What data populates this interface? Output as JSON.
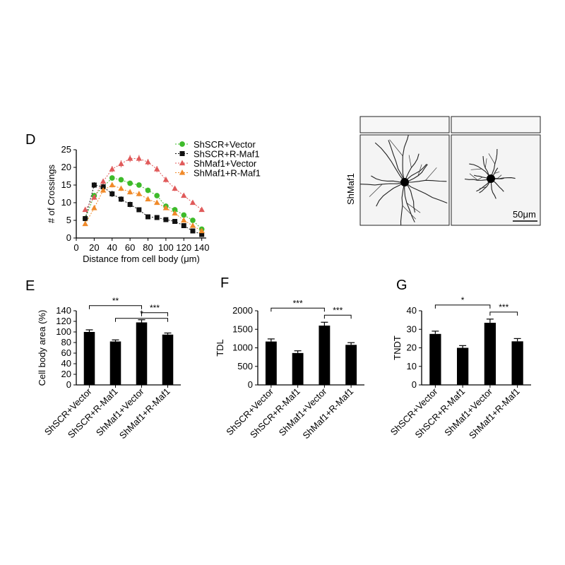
{
  "panels": {
    "D": "D",
    "E": "E",
    "F": "F",
    "G": "G"
  },
  "micrograph": {
    "row_label": "ShMaf1",
    "scale_bar": "50μm"
  },
  "chart_data": [
    {
      "id": "D",
      "type": "line",
      "title": "",
      "xlabel": "Distance from cell body (μm)",
      "ylabel": "# of Crossings",
      "xlim": [
        0,
        145
      ],
      "ylim": [
        0,
        25
      ],
      "xticks": [
        0,
        20,
        40,
        60,
        80,
        100,
        120,
        140
      ],
      "yticks": [
        0,
        5,
        10,
        15,
        20,
        25
      ],
      "legend_position": "top-right",
      "x": [
        10,
        20,
        30,
        40,
        50,
        60,
        70,
        80,
        90,
        100,
        110,
        120,
        130,
        140
      ],
      "series": [
        {
          "name": "ShSCR+Vector",
          "color": "#3dbb2a",
          "marker": "circle",
          "values": [
            5.5,
            12.0,
            14.5,
            17.0,
            16.5,
            15.5,
            15.0,
            13.5,
            12.0,
            9.0,
            8.0,
            6.5,
            5.0,
            2.5
          ],
          "errors": [
            0.5,
            0.6,
            0.6,
            0.7,
            0.7,
            0.7,
            0.7,
            0.6,
            0.6,
            0.6,
            0.5,
            0.5,
            0.5,
            0.4
          ]
        },
        {
          "name": "ShSCR+R-Maf1",
          "color": "#111111",
          "marker": "square",
          "values": [
            5.5,
            15.0,
            14.5,
            12.5,
            11.0,
            9.5,
            8.0,
            6.0,
            5.8,
            5.2,
            4.7,
            3.5,
            2.0,
            1.0
          ],
          "errors": [
            0.6,
            0.8,
            0.9,
            0.9,
            0.8,
            0.8,
            0.7,
            0.7,
            0.6,
            0.6,
            0.6,
            0.5,
            0.4,
            0.3
          ]
        },
        {
          "name": "ShMaf1+Vector",
          "color": "#e05a5a",
          "marker": "triangle",
          "values": [
            8.0,
            11.5,
            16.0,
            19.5,
            21.0,
            22.5,
            22.5,
            21.5,
            19.5,
            16.5,
            14.0,
            12.0,
            10.0,
            8.0
          ],
          "errors": [
            0.6,
            0.7,
            0.8,
            0.9,
            1.0,
            1.0,
            1.0,
            0.9,
            0.9,
            0.8,
            0.7,
            0.6,
            0.6,
            0.5
          ]
        },
        {
          "name": "ShMaf1+R-Maf1",
          "color": "#f08a2a",
          "marker": "triangle",
          "values": [
            4.0,
            8.5,
            13.5,
            15.0,
            14.0,
            13.0,
            12.5,
            11.0,
            10.0,
            8.5,
            7.0,
            5.0,
            3.5,
            2.0
          ],
          "errors": [
            0.5,
            0.6,
            0.7,
            0.7,
            0.7,
            0.7,
            0.7,
            0.6,
            0.6,
            0.6,
            0.5,
            0.5,
            0.4,
            0.3
          ]
        }
      ]
    },
    {
      "id": "E",
      "type": "bar",
      "ylabel": "Cell body area (%)",
      "ylim": [
        0,
        140
      ],
      "yticks": [
        0,
        20,
        40,
        60,
        80,
        100,
        120,
        140
      ],
      "categories": [
        "ShSCR+Vector",
        "ShSCR+R-Maf1",
        "ShMaf1+Vector",
        "ShMaf1+R-Maf1"
      ],
      "values": [
        100,
        82,
        118,
        95
      ],
      "errors": [
        4,
        3,
        5,
        3
      ],
      "significance": [
        {
          "from": 0,
          "to": 2,
          "label": "**"
        },
        {
          "from": 2,
          "to": 3,
          "label": "***"
        },
        {
          "from": 1,
          "to": 3,
          "label": "*"
        }
      ]
    },
    {
      "id": "F",
      "type": "bar",
      "ylabel": "TDL",
      "ylim": [
        0,
        2000
      ],
      "yticks": [
        0,
        500,
        1000,
        1500,
        2000
      ],
      "categories": [
        "ShSCR+Vector",
        "ShSCR+R-Maf1",
        "ShMaf1+Vector",
        "ShMaf1+R-Maf1"
      ],
      "values": [
        1170,
        860,
        1600,
        1080
      ],
      "errors": [
        70,
        60,
        90,
        60
      ],
      "significance": [
        {
          "from": 0,
          "to": 2,
          "label": "***"
        },
        {
          "from": 2,
          "to": 3,
          "label": "***"
        }
      ]
    },
    {
      "id": "G",
      "type": "bar",
      "ylabel": "TNDT",
      "ylim": [
        0,
        40
      ],
      "yticks": [
        0,
        10,
        20,
        30,
        40
      ],
      "categories": [
        "ShSCR+Vector",
        "ShSCR+R-Maf1",
        "ShMaf1+Vector",
        "ShMaf1+R-Maf1"
      ],
      "values": [
        27.5,
        20,
        33.5,
        23.5
      ],
      "errors": [
        1.5,
        1.2,
        2.0,
        1.5
      ],
      "significance": [
        {
          "from": 0,
          "to": 2,
          "label": "*"
        },
        {
          "from": 2,
          "to": 3,
          "label": "***"
        }
      ]
    }
  ]
}
